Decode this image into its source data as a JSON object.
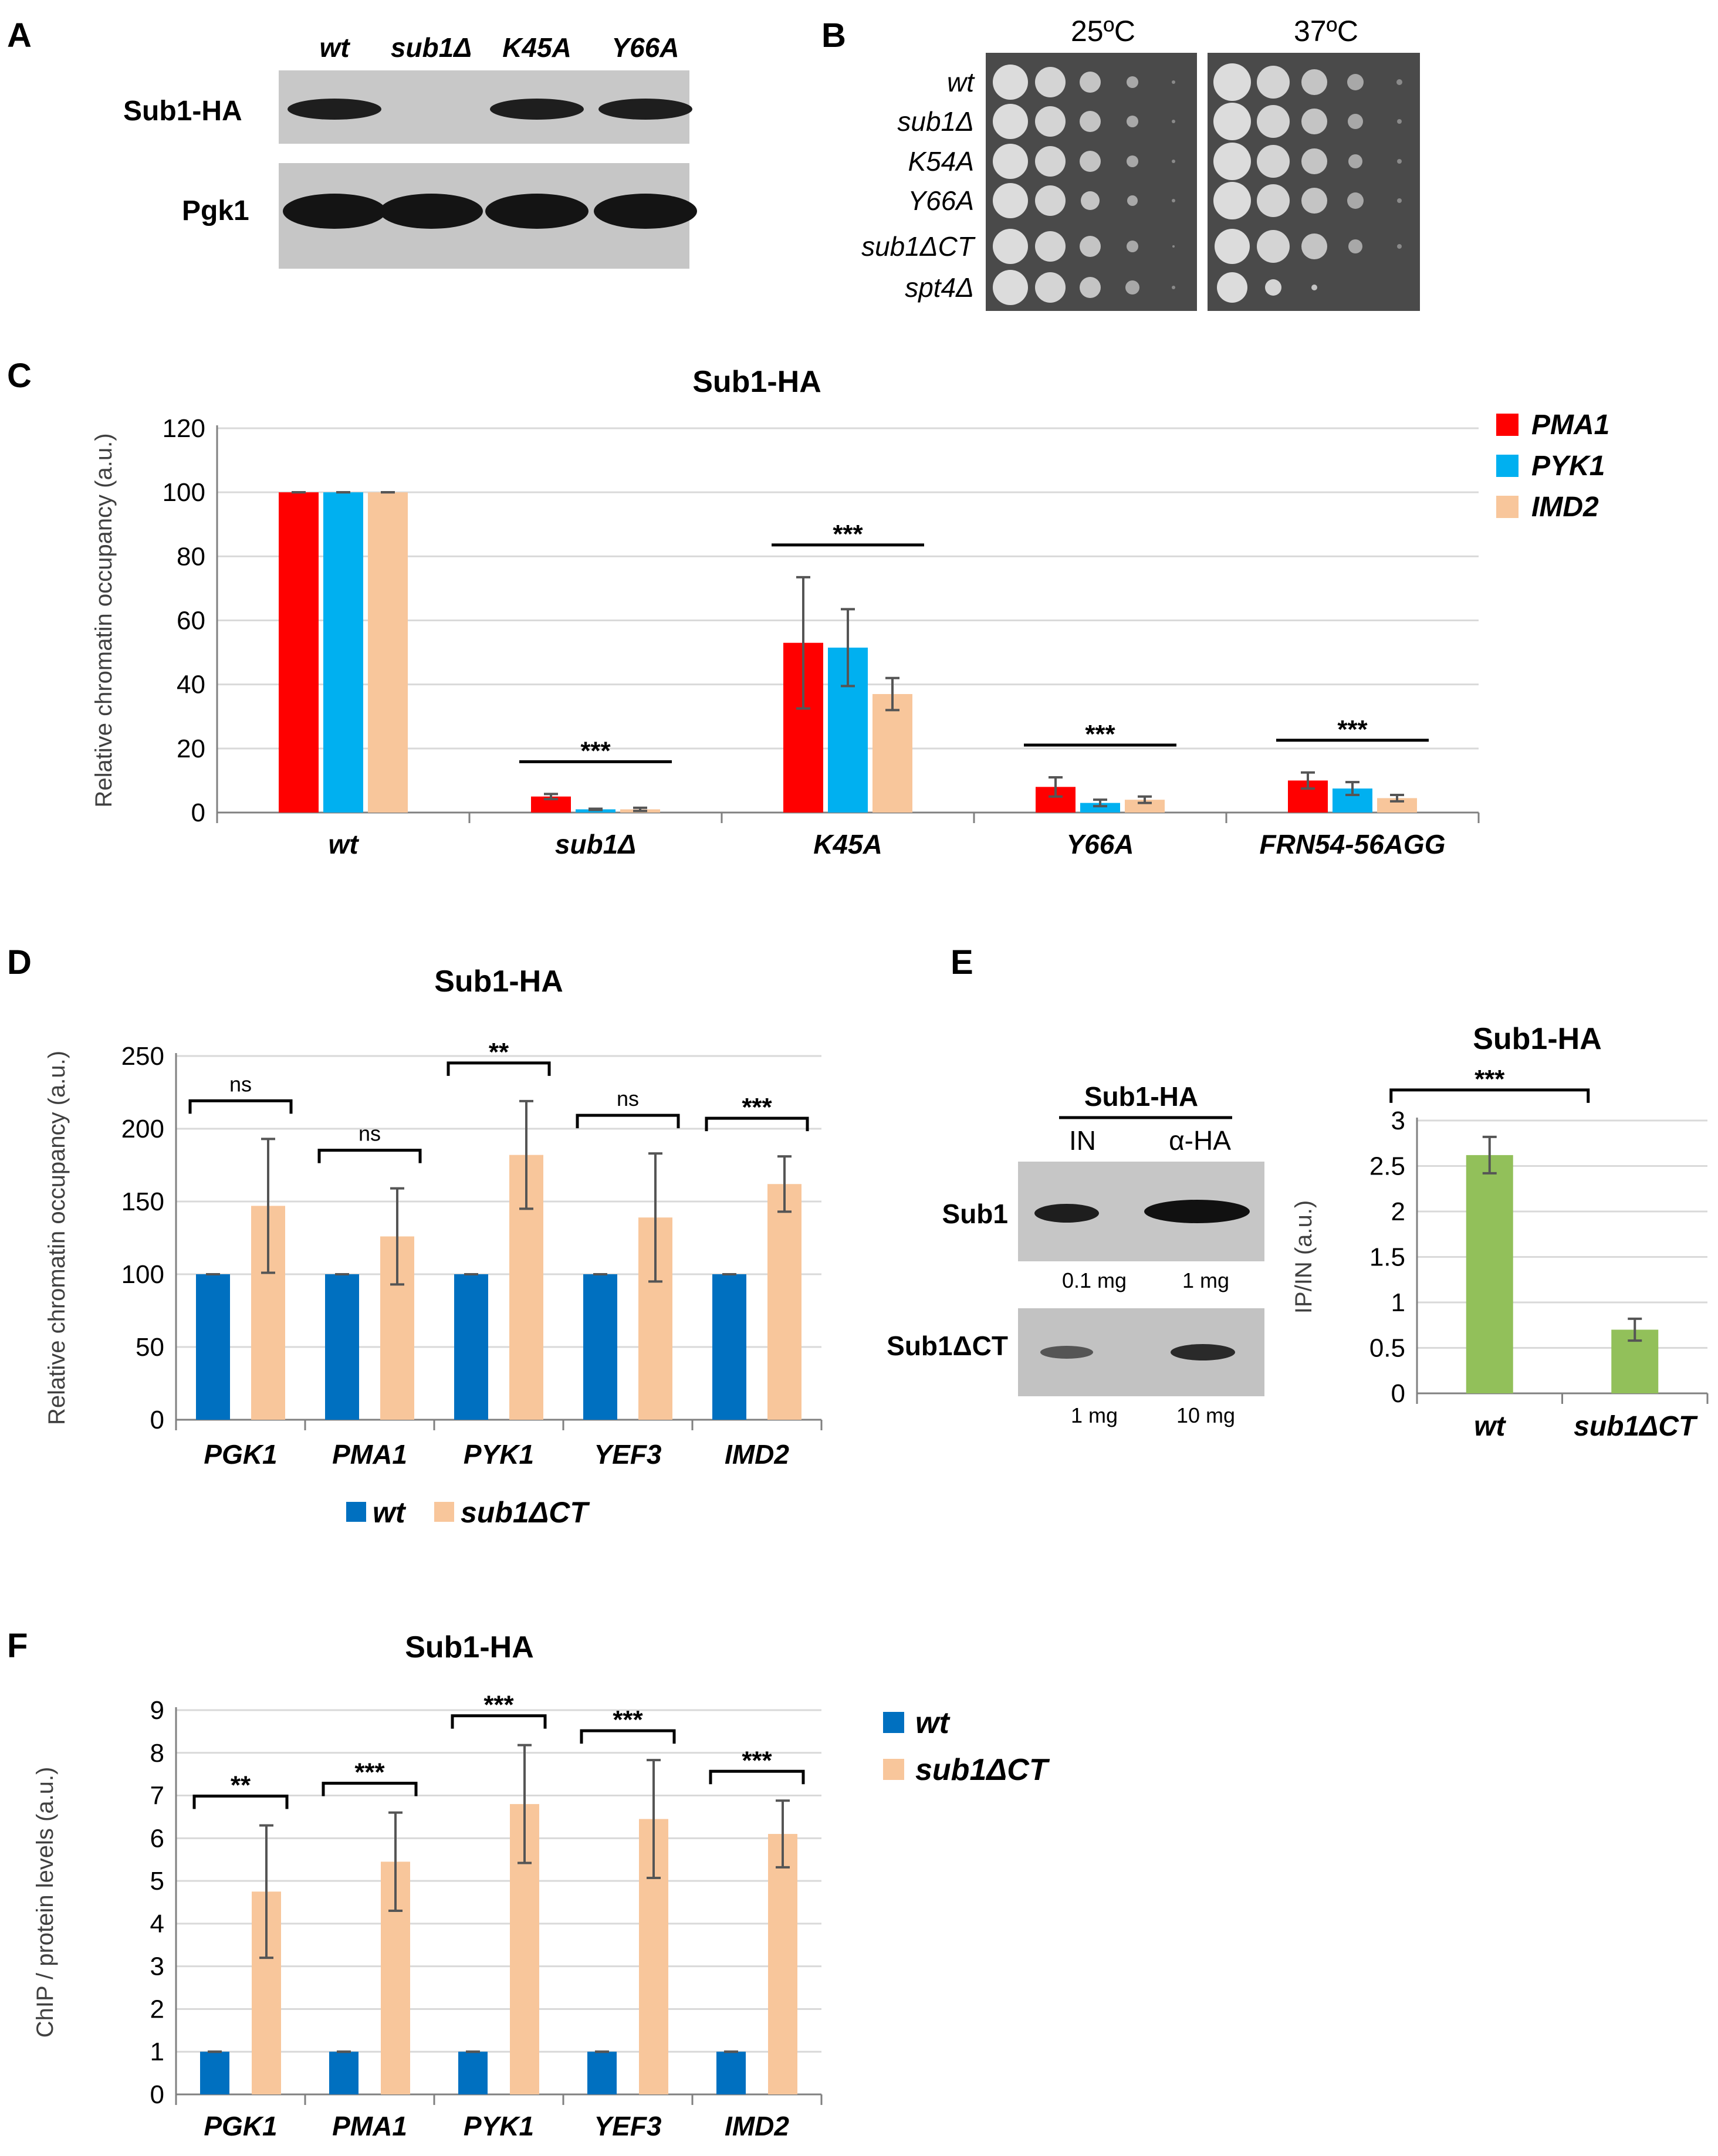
{
  "panels": {
    "A": "A",
    "B": "B",
    "C": "C",
    "D": "D",
    "E": "E",
    "F": "F"
  },
  "colors": {
    "pma1": "#ff0000",
    "pyk1": "#00b0f0",
    "imd2": "#f8c69b",
    "wt": "#0070c0",
    "sub1dct": "#f8c69b",
    "green": "#92c05a",
    "grid": "#d9d9d9",
    "axis": "#808080",
    "err": "#555555"
  },
  "blot_a": {
    "lanes": [
      "wt",
      "sub1Δ",
      "K45A",
      "Y66A"
    ],
    "rows": [
      "Sub1-HA",
      "Pgk1"
    ],
    "sub1_present": [
      true,
      false,
      true,
      true
    ]
  },
  "spot_b": {
    "temps": [
      "25ºC",
      "37ºC"
    ],
    "strains": [
      "wt",
      "sub1Δ",
      "K54A",
      "Y66A",
      "sub1ΔCT",
      "spt4Δ"
    ]
  },
  "blot_e": {
    "header": "Sub1-HA",
    "cols": [
      "IN",
      "α-HA"
    ],
    "rows": [
      "Sub1",
      "Sub1ΔCT"
    ],
    "amounts": [
      [
        "0.1 mg",
        "1 mg"
      ],
      [
        "1 mg",
        "10 mg"
      ]
    ]
  },
  "chart_data": [
    {
      "id": "C",
      "type": "bar",
      "title": "Sub1-HA",
      "ylabel": "Relative  chromatin occupancy (a.u.)",
      "xlabel": "",
      "categories": [
        "wt",
        "sub1Δ",
        "K45A",
        "Y66A",
        "FRN54-56AGG"
      ],
      "series": [
        {
          "name": "PMA1",
          "values": [
            100,
            5,
            53,
            8,
            10
          ],
          "errors": [
            0,
            0.8,
            20.5,
            3,
            2.5
          ]
        },
        {
          "name": "PYK1",
          "values": [
            100,
            1,
            51.5,
            3,
            7.5
          ],
          "errors": [
            0,
            0.2,
            12,
            1,
            2
          ]
        },
        {
          "name": "IMD2",
          "values": [
            100,
            1,
            37,
            4,
            4.5
          ],
          "errors": [
            0,
            0.5,
            5,
            1,
            1
          ]
        }
      ],
      "ylim": [
        0,
        120
      ],
      "yticks": [
        0,
        20,
        40,
        60,
        80,
        100,
        120
      ],
      "significance": [
        "",
        "***",
        "***",
        "***",
        "***"
      ],
      "legend": "top-right",
      "grid": true
    },
    {
      "id": "D",
      "type": "bar",
      "title": "Sub1-HA",
      "ylabel": "Relative  chromatin occupancy (a.u.)",
      "xlabel": "",
      "categories": [
        "PGK1",
        "PMA1",
        "PYK1",
        "YEF3",
        "IMD2"
      ],
      "series": [
        {
          "name": "wt",
          "values": [
            100,
            100,
            100,
            100,
            100
          ],
          "errors": [
            0,
            0,
            0,
            0,
            0
          ]
        },
        {
          "name": "sub1ΔCT",
          "values": [
            147,
            126,
            182,
            139,
            162
          ],
          "errors": [
            46,
            33,
            37,
            44,
            19
          ]
        }
      ],
      "ylim": [
        0,
        250
      ],
      "yticks": [
        0,
        50,
        100,
        150,
        200,
        250
      ],
      "significance": [
        "ns",
        "ns",
        "**",
        "ns",
        "***"
      ],
      "legend": "bottom",
      "grid": true
    },
    {
      "id": "E",
      "type": "bar",
      "title": "Sub1-HA",
      "ylabel": "IP/IN (a.u.)",
      "xlabel": "",
      "categories": [
        "wt",
        "sub1ΔCT"
      ],
      "series": [
        {
          "name": "IP/IN",
          "values": [
            2.62,
            0.7
          ],
          "errors": [
            0.2,
            0.12
          ]
        }
      ],
      "ylim": [
        0,
        3
      ],
      "yticks": [
        0,
        0.5,
        1,
        1.5,
        2,
        2.5,
        3
      ],
      "significance": [
        "***"
      ],
      "legend": "none",
      "grid": true
    },
    {
      "id": "F",
      "type": "bar",
      "title": "Sub1-HA",
      "ylabel": "ChIP / protein levels  (a.u.)",
      "xlabel": "",
      "categories": [
        "PGK1",
        "PMA1",
        "PYK1",
        "YEF3",
        "IMD2"
      ],
      "series": [
        {
          "name": "wt",
          "values": [
            1,
            1,
            1,
            1,
            1
          ],
          "errors": [
            0,
            0,
            0,
            0,
            0
          ]
        },
        {
          "name": "sub1ΔCT",
          "values": [
            4.75,
            5.45,
            6.8,
            6.45,
            6.1
          ],
          "errors": [
            1.55,
            1.15,
            1.38,
            1.38,
            0.78
          ]
        }
      ],
      "ylim": [
        0,
        9
      ],
      "yticks": [
        0,
        1,
        2,
        3,
        4,
        5,
        6,
        7,
        8,
        9
      ],
      "significance": [
        "**",
        "***",
        "***",
        "***",
        "***"
      ],
      "legend": "top-right",
      "grid": true
    }
  ]
}
